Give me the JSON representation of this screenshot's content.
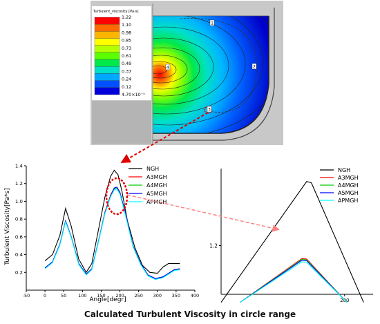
{
  "contour": {
    "legend_title": "Turbulent_viscosity [Pa·s]",
    "legend_labels": [
      "1.22",
      "1.10",
      "0.98",
      "0.85",
      "0.73",
      "0.61",
      "0.49",
      "0.37",
      "0.24",
      "0.12",
      "4.70×10⁻⁵"
    ],
    "legend_colors": [
      "#ff0000",
      "#ff6a00",
      "#ffb400",
      "#ffff00",
      "#b4ff00",
      "#5aff00",
      "#00e84a",
      "#00e0c8",
      "#00a8ff",
      "#0050ff",
      "#0000dc"
    ],
    "probe_labels": [
      "1",
      "2",
      "3",
      "4"
    ]
  },
  "chart_data": [
    {
      "type": "line",
      "xlabel": "Angle[degr]",
      "ylabel": "Turbulent Viscosity[Pa*s]",
      "xlim": [
        -50,
        400
      ],
      "ylim": [
        0,
        1.4
      ],
      "xticks": [
        -50,
        0,
        50,
        100,
        150,
        200,
        250,
        300,
        350,
        400
      ],
      "yticks": [
        0.2,
        0.4,
        0.6,
        0.8,
        1.0,
        1.2,
        1.4
      ],
      "legend_position": "top-right",
      "series": [
        {
          "name": "NGH",
          "color": "#000000",
          "x": [
            0,
            20,
            40,
            55,
            70,
            90,
            110,
            125,
            140,
            160,
            175,
            185,
            195,
            205,
            220,
            240,
            260,
            280,
            300,
            315,
            330,
            345,
            360
          ],
          "y": [
            0.33,
            0.4,
            0.62,
            0.92,
            0.72,
            0.35,
            0.2,
            0.3,
            0.62,
            1.05,
            1.28,
            1.35,
            1.3,
            1.12,
            0.78,
            0.48,
            0.28,
            0.2,
            0.19,
            0.26,
            0.3,
            0.3,
            0.3
          ]
        },
        {
          "name": "A3MGH",
          "color": "#ff0000",
          "x": [
            0,
            20,
            40,
            55,
            70,
            90,
            110,
            125,
            140,
            160,
            175,
            185,
            192,
            200,
            215,
            235,
            255,
            275,
            295,
            315,
            330,
            345,
            360
          ],
          "y": [
            0.25,
            0.32,
            0.52,
            0.78,
            0.6,
            0.3,
            0.18,
            0.24,
            0.5,
            0.88,
            1.07,
            1.15,
            1.16,
            1.1,
            0.86,
            0.5,
            0.3,
            0.17,
            0.13,
            0.15,
            0.19,
            0.23,
            0.24
          ]
        },
        {
          "name": "A4MGH",
          "color": "#00cc00",
          "x": [
            0,
            20,
            40,
            55,
            70,
            90,
            110,
            125,
            140,
            160,
            175,
            185,
            192,
            200,
            215,
            235,
            255,
            275,
            295,
            315,
            330,
            345,
            360
          ],
          "y": [
            0.25,
            0.32,
            0.52,
            0.78,
            0.6,
            0.3,
            0.18,
            0.24,
            0.5,
            0.87,
            1.06,
            1.14,
            1.15,
            1.09,
            0.85,
            0.5,
            0.3,
            0.17,
            0.13,
            0.15,
            0.19,
            0.23,
            0.24
          ]
        },
        {
          "name": "A5MGH",
          "color": "#0000ff",
          "x": [
            0,
            20,
            40,
            55,
            70,
            90,
            110,
            125,
            140,
            160,
            175,
            185,
            192,
            200,
            215,
            235,
            255,
            275,
            295,
            315,
            330,
            345,
            360
          ],
          "y": [
            0.25,
            0.32,
            0.52,
            0.78,
            0.6,
            0.3,
            0.18,
            0.24,
            0.5,
            0.87,
            1.06,
            1.15,
            1.16,
            1.1,
            0.86,
            0.5,
            0.3,
            0.17,
            0.13,
            0.15,
            0.19,
            0.23,
            0.24
          ]
        },
        {
          "name": "APMGH",
          "color": "#00ffff",
          "x": [
            0,
            20,
            40,
            55,
            70,
            90,
            110,
            125,
            140,
            160,
            175,
            185,
            192,
            200,
            215,
            235,
            255,
            275,
            295,
            315,
            330,
            345,
            360
          ],
          "y": [
            0.24,
            0.31,
            0.51,
            0.77,
            0.59,
            0.29,
            0.17,
            0.23,
            0.49,
            0.86,
            1.05,
            1.13,
            1.14,
            1.08,
            0.84,
            0.49,
            0.29,
            0.16,
            0.12,
            0.14,
            0.18,
            0.22,
            0.23
          ]
        }
      ]
    },
    {
      "type": "line",
      "xlim": [
        174,
        206
      ],
      "ylim": [
        1.08,
        1.39
      ],
      "xticks": [
        200
      ],
      "yticks": [
        1.2
      ],
      "legend_position": "top-left",
      "series": [
        {
          "name": "NGH",
          "color": "#000000",
          "x": [
            174,
            192,
            193,
            204
          ],
          "y": [
            1.06,
            1.358,
            1.355,
            1.06
          ]
        },
        {
          "name": "A3MGH",
          "color": "#ff0000",
          "x": [
            178,
            191,
            192,
            200.5
          ],
          "y": [
            1.06,
            1.168,
            1.167,
            1.06
          ]
        },
        {
          "name": "A4MGH",
          "color": "#00cc00",
          "x": [
            178,
            191,
            192,
            200.5
          ],
          "y": [
            1.06,
            1.166,
            1.165,
            1.06
          ]
        },
        {
          "name": "A5MGH",
          "color": "#0000ff",
          "x": [
            178,
            191,
            192,
            200.5
          ],
          "y": [
            1.06,
            1.164,
            1.163,
            1.06
          ]
        },
        {
          "name": "APMGH",
          "color": "#00ffff",
          "x": [
            178,
            191,
            192,
            200.5
          ],
          "y": [
            1.06,
            1.16,
            1.159,
            1.06
          ]
        }
      ]
    }
  ],
  "caption": "Calculated Turbulent Viscosity in circle range"
}
